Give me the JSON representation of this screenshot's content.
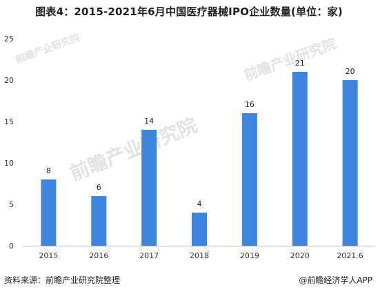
{
  "title": "图表4：2015-2021年6月中国医疗器械IPO企业数量(单位：家)",
  "source": "资料来源：前瞻产业研究院整理",
  "credit": "@前瞻经济学人APP",
  "watermark": "前瞻产业研究院",
  "chart_data": {
    "type": "bar",
    "categories": [
      "2015",
      "2016",
      "2017",
      "2018",
      "2019",
      "2020",
      "2021.6"
    ],
    "values": [
      8,
      6,
      14,
      4,
      16,
      21,
      20
    ],
    "ylim": [
      0,
      25
    ],
    "yticks": [
      0,
      5,
      10,
      15,
      20,
      25
    ],
    "bar_color": "#3f85e0",
    "grid": false
  }
}
